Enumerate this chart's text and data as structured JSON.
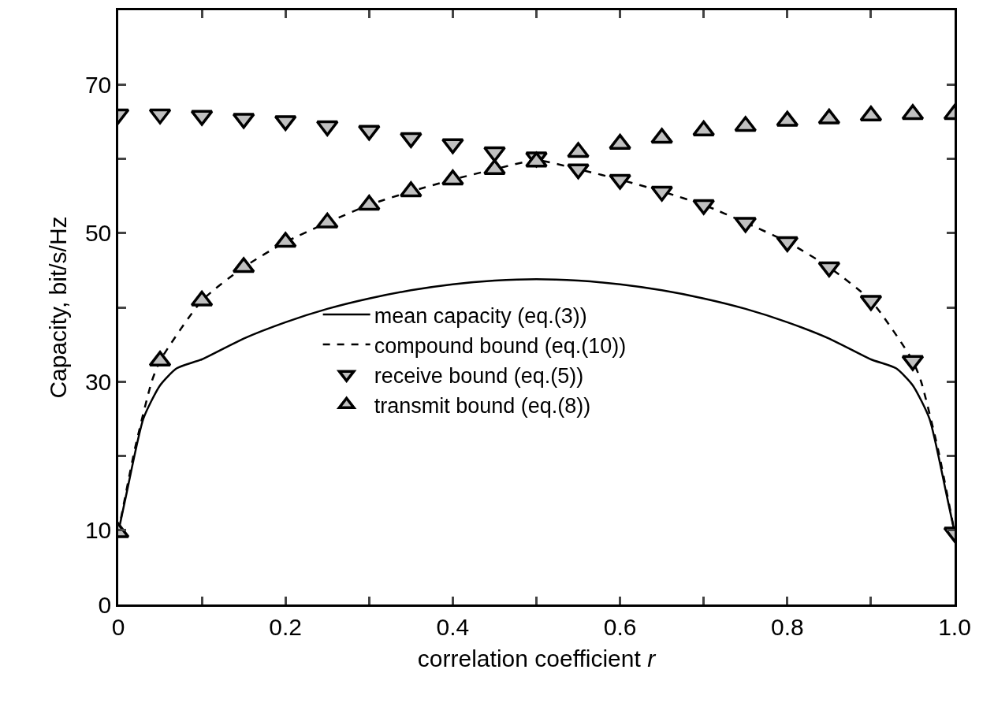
{
  "chart_data": {
    "type": "line",
    "xlabel": "correlation coefficient r",
    "ylabel": "Capacity, bit/s/Hz",
    "xlim": [
      0,
      1.0
    ],
    "ylim": [
      0,
      80
    ],
    "xticks": [
      0,
      {
        "value": 0.1,
        "label": null
      },
      0.2,
      {
        "value": 0.3,
        "label": null
      },
      0.4,
      {
        "value": 0.5,
        "label": null
      },
      0.6,
      {
        "value": 0.7,
        "label": null
      },
      0.8,
      {
        "value": 0.9,
        "label": null
      },
      {
        "value": 1.0,
        "label": "1.0"
      }
    ],
    "yticks": [
      0,
      10,
      {
        "value": 20,
        "label": null
      },
      30,
      {
        "value": 40,
        "label": null
      },
      50,
      {
        "value": 60,
        "label": null
      },
      70
    ],
    "legend": "center",
    "series": [
      {
        "name": "mean capacity (eq.(3))",
        "line_style": "solid",
        "color": "#000000",
        "x": [
          0,
          0.01,
          0.03,
          0.05,
          0.07,
          0.1,
          0.15,
          0.2,
          0.25,
          0.3,
          0.35,
          0.4,
          0.45,
          0.5,
          0.55,
          0.6,
          0.65,
          0.7,
          0.75,
          0.8,
          0.85,
          0.9,
          0.93,
          0.95,
          0.97,
          0.99,
          1.0
        ],
        "values": [
          9.7,
          15,
          25,
          29.5,
          31.8,
          33,
          35.8,
          38,
          39.8,
          41.2,
          42.3,
          43.1,
          43.6,
          43.8,
          43.6,
          43.1,
          42.3,
          41.2,
          39.8,
          38,
          35.8,
          33,
          31.8,
          29.5,
          25,
          15,
          9.7
        ]
      },
      {
        "name": "compound bound (eq.(10))",
        "line_style": "dashed",
        "color": "#000000",
        "x": [
          0,
          0.02,
          0.04,
          0.05,
          0.1,
          0.15,
          0.2,
          0.25,
          0.3,
          0.35,
          0.4,
          0.45,
          0.5,
          0.55,
          0.6,
          0.65,
          0.7,
          0.75,
          0.8,
          0.85,
          0.9,
          0.95,
          0.96,
          0.98,
          1.0
        ],
        "values": [
          9.7,
          21,
          30,
          32.8,
          40.9,
          45.4,
          48.8,
          51.4,
          53.8,
          55.6,
          57.2,
          58.6,
          59.8,
          58.6,
          57.2,
          55.6,
          53.8,
          51.4,
          48.8,
          45.4,
          40.9,
          32.8,
          30,
          21,
          9.7
        ]
      },
      {
        "name": "receive bound (eq.(5))",
        "type": "scatter",
        "marker": "triangle-down",
        "color": "#c0c0c0",
        "x": [
          0,
          0.05,
          0.1,
          0.15,
          0.2,
          0.25,
          0.3,
          0.35,
          0.4,
          0.45,
          0.5,
          0.55,
          0.6,
          0.65,
          0.7,
          0.75,
          0.8,
          0.85,
          0.9,
          0.95,
          1.0
        ],
        "values": [
          66.0,
          66.0,
          65.8,
          65.4,
          65.1,
          64.4,
          63.8,
          62.8,
          62.0,
          60.9,
          60.2,
          58.6,
          57.2,
          55.6,
          53.8,
          51.4,
          48.8,
          45.4,
          40.9,
          32.8,
          9.7
        ]
      },
      {
        "name": "transmit bound (eq.(8))",
        "type": "scatter",
        "marker": "triangle",
        "color": "#c0c0c0",
        "x": [
          0,
          0.05,
          0.1,
          0.15,
          0.2,
          0.25,
          0.3,
          0.35,
          0.4,
          0.45,
          0.5,
          0.55,
          0.6,
          0.65,
          0.7,
          0.75,
          0.8,
          0.85,
          0.9,
          0.95,
          1.0
        ],
        "values": [
          9.7,
          32.8,
          40.9,
          45.4,
          48.8,
          51.4,
          53.8,
          55.6,
          57.2,
          58.6,
          59.6,
          60.9,
          62.0,
          62.8,
          63.8,
          64.4,
          65.1,
          65.4,
          65.8,
          66.0,
          66.0
        ]
      }
    ]
  }
}
